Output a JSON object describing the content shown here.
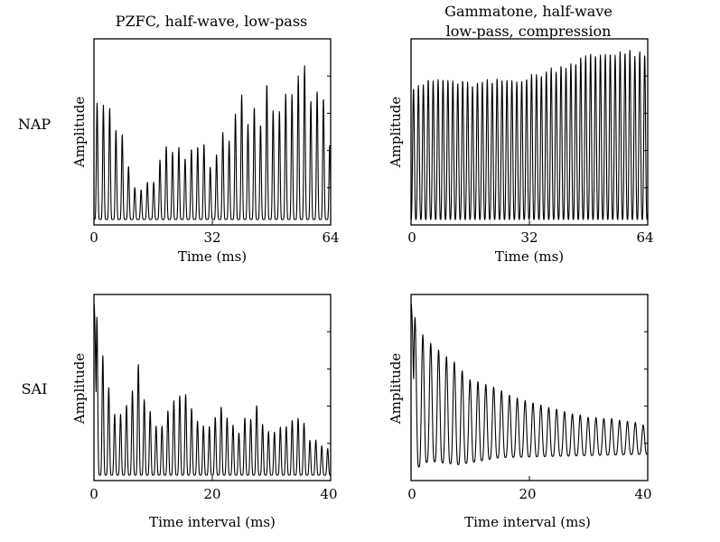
{
  "figure": {
    "column_titles": [
      [
        "PZFC, half-wave, low-pass"
      ],
      [
        "Gammatone, half-wave",
        "low-pass, compression"
      ]
    ],
    "row_labels": [
      "NAP",
      "SAI"
    ]
  },
  "chart_data": [
    {
      "id": "nap-pzfc",
      "type": "line",
      "row": "NAP",
      "column_title": "PZFC, half-wave, low-pass",
      "xlabel": "Time (ms)",
      "ylabel": "Amplitude",
      "xlim": [
        0,
        64
      ],
      "xticks": [
        0,
        32,
        64
      ],
      "tick_labels": [
        "0",
        "32",
        "64"
      ],
      "ylim": [
        0,
        1
      ],
      "period": 1.7,
      "sharpness": 4,
      "envelope": {
        "x": [
          0,
          4,
          7,
          10,
          12,
          16,
          20,
          24,
          28,
          32,
          36,
          40,
          44,
          48,
          50,
          54,
          56,
          60,
          62,
          64
        ],
        "y": [
          0.6,
          0.66,
          0.5,
          0.22,
          0.15,
          0.25,
          0.42,
          0.35,
          0.46,
          0.25,
          0.52,
          0.62,
          0.58,
          0.72,
          0.65,
          0.76,
          0.9,
          0.72,
          0.6,
          0.45
        ]
      },
      "jitter": 0.35
    },
    {
      "id": "nap-gammatone",
      "type": "line",
      "row": "NAP",
      "column_title": "Gammatone, half-wave / low-pass, compression",
      "xlabel": "Time (ms)",
      "ylabel": "Amplitude",
      "xlim": [
        0,
        64
      ],
      "xticks": [
        0,
        32,
        64
      ],
      "tick_labels": [
        "0",
        "32",
        "64"
      ],
      "ylim": [
        0,
        1
      ],
      "period": 1.33,
      "sharpness": 1.6,
      "envelope": {
        "x": [
          0,
          8,
          16,
          24,
          32,
          40,
          48,
          56,
          64
        ],
        "y": [
          0.76,
          0.8,
          0.77,
          0.79,
          0.81,
          0.87,
          0.93,
          0.96,
          0.93
        ]
      },
      "jitter": 0.05
    },
    {
      "id": "sai-pzfc",
      "type": "line",
      "row": "SAI",
      "column_title": "PZFC, half-wave, low-pass",
      "xlabel": "Time interval (ms)",
      "ylabel": "Amplitude",
      "xlim": [
        0,
        40
      ],
      "xticks": [
        0,
        20,
        40
      ],
      "tick_labels": [
        "0",
        "20",
        "40"
      ],
      "ylim": [
        0,
        1
      ],
      "period": 1.0,
      "sharpness": 3,
      "peak_at_zero": 0.98,
      "envelope": {
        "x": [
          0,
          1,
          2,
          3,
          5,
          7,
          9,
          11,
          13,
          15,
          17,
          20,
          22,
          25,
          27,
          30,
          32,
          34,
          37,
          40
        ],
        "y": [
          0.95,
          0.9,
          0.55,
          0.35,
          0.3,
          0.62,
          0.45,
          0.2,
          0.48,
          0.5,
          0.35,
          0.3,
          0.38,
          0.25,
          0.4,
          0.2,
          0.3,
          0.33,
          0.2,
          0.15
        ]
      },
      "jitter": 0.28
    },
    {
      "id": "sai-gammatone",
      "type": "line",
      "row": "SAI",
      "column_title": "Gammatone, half-wave / low-pass, compression",
      "xlabel": "Time interval (ms)",
      "ylabel": "Amplitude",
      "xlim": [
        0,
        40
      ],
      "xticks": [
        0,
        20,
        40
      ],
      "tick_labels": [
        "0",
        "20",
        "40"
      ],
      "ylim": [
        0,
        1
      ],
      "period": 1.33,
      "sharpness": 1.8,
      "peak_at_zero": 0.98,
      "floor": {
        "x": [
          0,
          3,
          8,
          15,
          40
        ],
        "y": [
          0.02,
          0.08,
          0.06,
          0.1,
          0.12
        ]
      },
      "envelope": {
        "x": [
          0,
          1,
          2,
          4,
          6,
          8,
          10,
          14,
          18,
          22,
          26,
          30,
          34,
          38,
          40
        ],
        "y": [
          0.92,
          0.88,
          0.8,
          0.74,
          0.68,
          0.62,
          0.55,
          0.5,
          0.44,
          0.4,
          0.36,
          0.33,
          0.32,
          0.3,
          0.28
        ]
      },
      "jitter": 0.02
    }
  ]
}
